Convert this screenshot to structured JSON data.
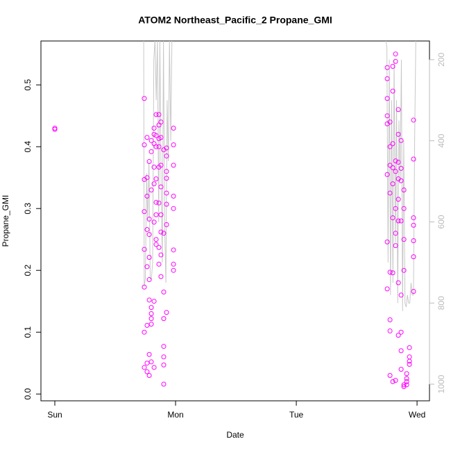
{
  "chart_data": {
    "type": "scatter",
    "title": "ATOM2 Northeast_Pacific_2 Propane_GMI",
    "x_label": "Date",
    "y_label": "Propane_GMI",
    "xlim": [
      -0.115,
      3.103
    ],
    "xticks": [
      {
        "value": 0,
        "label": "Sun"
      },
      {
        "value": 1,
        "label": "Mon"
      },
      {
        "value": 2,
        "label": "Tue"
      },
      {
        "value": 3,
        "label": "Wed"
      }
    ],
    "ylim": [
      -0.011,
      0.571
    ],
    "yticks": [
      {
        "value": 0,
        "label": "0.0"
      },
      0.1,
      0.2,
      0.3,
      0.4,
      0.5
    ],
    "y2lim": [
      1041,
      154
    ],
    "y2ticks": [
      200,
      400,
      600,
      800,
      1000
    ],
    "series": [
      {
        "color": "#ff00ff",
        "x": [
          0,
          0,
          0.741,
          0.741,
          0.741,
          0.741,
          0.741,
          0.741,
          0.741,
          0.741,
          0.764,
          0.764,
          0.764,
          0.764,
          0.764,
          0.764,
          0.764,
          0.764,
          0.782,
          0.782,
          0.782,
          0.782,
          0.782,
          0.782,
          0.782,
          0.782,
          0.799,
          0.799,
          0.799,
          0.799,
          0.799,
          0.799,
          0.799,
          0.799,
          0.822,
          0.822,
          0.822,
          0.822,
          0.822,
          0.822,
          0.822,
          0.822,
          0.839,
          0.839,
          0.839,
          0.839,
          0.839,
          0.839,
          0.839,
          0.839,
          0.862,
          0.862,
          0.862,
          0.862,
          0.862,
          0.862,
          0.862,
          0.862,
          0.879,
          0.879,
          0.879,
          0.879,
          0.879,
          0.879,
          0.879,
          0.879,
          0.902,
          0.902,
          0.902,
          0.902,
          0.902,
          0.902,
          0.902,
          0.902,
          0.925,
          0.925,
          0.925,
          0.925,
          0.925,
          0.925,
          0.925,
          0.925,
          0.983,
          0.983,
          0.983,
          0.983,
          0.983,
          0.983,
          0.983,
          0.983,
          2.753,
          2.753,
          2.753,
          2.753,
          2.753,
          2.753,
          2.753,
          2.753,
          2.776,
          2.776,
          2.776,
          2.776,
          2.776,
          2.776,
          2.776,
          2.776,
          2.799,
          2.799,
          2.799,
          2.799,
          2.799,
          2.799,
          2.799,
          2.799,
          2.822,
          2.822,
          2.822,
          2.822,
          2.822,
          2.822,
          2.822,
          2.822,
          2.845,
          2.845,
          2.845,
          2.845,
          2.845,
          2.845,
          2.845,
          2.845,
          2.868,
          2.868,
          2.868,
          2.868,
          2.868,
          2.868,
          2.868,
          2.868,
          2.891,
          2.891,
          2.891,
          2.891,
          2.891,
          2.891,
          2.914,
          2.914,
          2.914,
          2.914,
          2.937,
          2.937,
          2.937,
          2.937,
          2.971,
          2.971,
          2.971,
          2.971,
          2.971,
          2.971,
          2.971
        ],
        "values": [
          0.43,
          0.428,
          0.478,
          0.403,
          0.347,
          0.295,
          0.234,
          0.173,
          0.1,
          0.043,
          0.05,
          0.111,
          0.266,
          0.32,
          0.35,
          0.415,
          0.036,
          0.206,
          0.376,
          0.283,
          0.258,
          0.221,
          0.185,
          0.152,
          0.064,
          0.03,
          0.392,
          0.41,
          0.33,
          0.113,
          0.122,
          0.13,
          0.14,
          0.052,
          0.367,
          0.405,
          0.42,
          0.43,
          0.34,
          0.278,
          0.15,
          0.043,
          0.29,
          0.25,
          0.31,
          0.348,
          0.4,
          0.418,
          0.452,
          0.242,
          0.452,
          0.435,
          0.413,
          0.367,
          0.309,
          0.21,
          0.237,
          0.4,
          0.415,
          0.44,
          0.37,
          0.335,
          0.262,
          0.225,
          0.19,
          0.29,
          0.016,
          0.047,
          0.06,
          0.077,
          0.122,
          0.165,
          0.26,
          0.395,
          0.349,
          0.325,
          0.307,
          0.385,
          0.36,
          0.398,
          0.274,
          0.132,
          0.21,
          0.2,
          0.3,
          0.32,
          0.37,
          0.403,
          0.43,
          0.233,
          0.355,
          0.437,
          0.45,
          0.478,
          0.51,
          0.528,
          0.246,
          0.17,
          0.44,
          0.4,
          0.37,
          0.325,
          0.197,
          0.12,
          0.102,
          0.03,
          0.53,
          0.49,
          0.405,
          0.366,
          0.34,
          0.285,
          0.196,
          0.02,
          0.55,
          0.538,
          0.377,
          0.36,
          0.3,
          0.26,
          0.24,
          0.022,
          0.46,
          0.42,
          0.375,
          0.348,
          0.315,
          0.28,
          0.18,
          0.095,
          0.41,
          0.365,
          0.345,
          0.28,
          0.16,
          0.1,
          0.07,
          0.04,
          0.33,
          0.3,
          0.25,
          0.2,
          0.015,
          0.012,
          0.015,
          0.02,
          0.025,
          0.033,
          0.06,
          0.075,
          0.053,
          0.048,
          0.443,
          0.38,
          0.285,
          0.273,
          0.248,
          0.222,
          0.166
        ]
      },
      {
        "color": "#c8c8c8",
        "axis": "y2",
        "line": true,
        "x": [
          0.736,
          0.74,
          0.75,
          0.76,
          0.77,
          0.78,
          0.79,
          0.8,
          0.81,
          0.82,
          0.83,
          0.84,
          0.85,
          0.86,
          0.87,
          0.88,
          0.89,
          0.9,
          0.91,
          0.92,
          0.93,
          0.94,
          0.95,
          0.96,
          0.97,
          0.98,
          0.99,
          1.5,
          2.74,
          2.75,
          2.76,
          2.77,
          2.78,
          2.79,
          2.8,
          2.81,
          2.82,
          2.83,
          2.84,
          2.85,
          2.86,
          2.87,
          2.88,
          2.89,
          2.9,
          2.91,
          2.92,
          2.93,
          2.94,
          2.95,
          2.96,
          2.97,
          2.98,
          2.99
        ],
        "values": [
          150,
          760,
          740,
          480,
          600,
          450,
          740,
          740,
          700,
          200,
          150,
          300,
          150,
          600,
          150,
          500,
          700,
          150,
          620,
          750,
          300,
          450,
          150,
          400,
          150,
          150,
          150,
          null,
          150,
          170,
          700,
          200,
          780,
          300,
          750,
          200,
          650,
          300,
          800,
          350,
          500,
          200,
          820,
          400,
          800,
          810,
          780,
          800,
          800,
          750,
          780,
          780,
          400,
          150
        ]
      }
    ]
  }
}
